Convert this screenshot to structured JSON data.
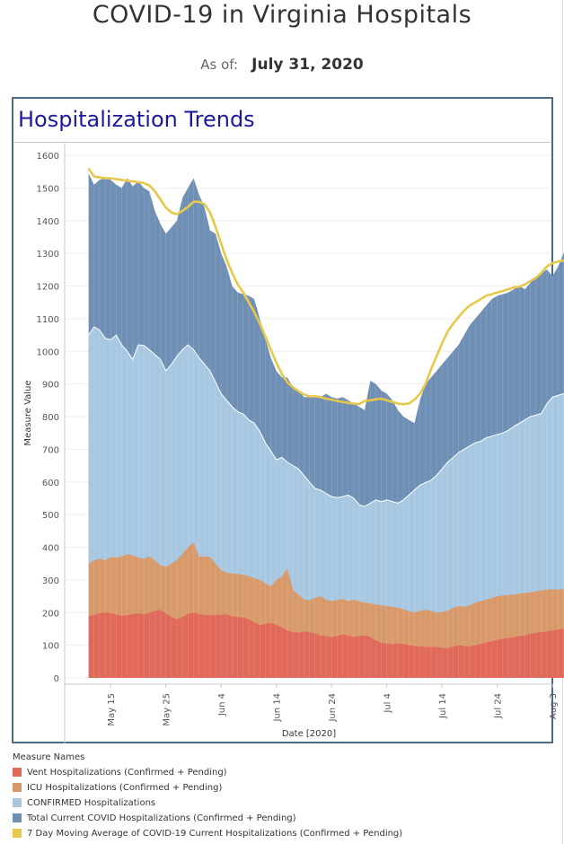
{
  "header": {
    "title": "COVID-19 in Virginia Hospitals",
    "as_of_label": "As of:",
    "as_of_value": "July 31, 2020"
  },
  "chart_data": {
    "type": "area",
    "title": "Hospitalization Trends",
    "ylabel": "Measure Value",
    "xlabel": "Date [2020]",
    "ylim": [
      0,
      1600
    ],
    "yticks": [
      0,
      100,
      200,
      300,
      400,
      500,
      600,
      700,
      800,
      900,
      1000,
      1100,
      1200,
      1300,
      1400,
      1500,
      1600
    ],
    "xticks": [
      "May 15",
      "May 25",
      "Jun 4",
      "Jun 14",
      "Jun 24",
      "Jul 4",
      "Jul 14",
      "Jul 24",
      "Aug 3"
    ],
    "x_start": "May 11",
    "x_end": "Jul 31",
    "legend_title": "Measure Names",
    "series": [
      {
        "name": "Vent Hospitalizations (Confirmed + Pending)",
        "color": "#e0695a",
        "values": [
          188,
          193,
          198,
          200,
          198,
          194,
          190,
          192,
          196,
          198,
          194,
          200,
          205,
          208,
          198,
          186,
          180,
          186,
          196,
          200,
          195,
          193,
          192,
          192,
          193,
          195,
          188,
          186,
          185,
          180,
          170,
          162,
          165,
          168,
          162,
          155,
          145,
          140,
          138,
          142,
          140,
          136,
          130,
          128,
          125,
          128,
          133,
          130,
          125,
          128,
          130,
          125,
          115,
          108,
          105,
          103,
          106,
          104,
          100,
          98,
          96,
          95,
          94,
          95,
          92,
          90,
          96,
          100,
          98,
          95,
          100,
          104,
          108,
          112,
          116,
          120,
          122,
          124,
          128,
          130,
          135,
          138,
          140,
          142,
          145,
          148,
          150,
          152,
          148,
          145
        ]
      },
      {
        "name": "ICU Hospitalizations (Confirmed + Pending)",
        "color": "#d89a6a",
        "values": [
          350,
          360,
          365,
          360,
          370,
          368,
          372,
          378,
          375,
          368,
          365,
          372,
          360,
          345,
          340,
          350,
          360,
          380,
          400,
          415,
          370,
          372,
          370,
          350,
          330,
          322,
          320,
          318,
          315,
          312,
          305,
          300,
          290,
          280,
          300,
          310,
          335,
          270,
          255,
          240,
          238,
          245,
          250,
          240,
          236,
          238,
          242,
          235,
          240,
          235,
          230,
          228,
          225,
          222,
          220,
          218,
          215,
          210,
          205,
          200,
          206,
          208,
          205,
          200,
          202,
          205,
          215,
          220,
          218,
          222,
          230,
          235,
          240,
          245,
          250,
          252,
          254,
          255,
          258,
          260,
          262,
          265,
          268,
          270,
          272,
          270,
          272,
          274,
          276,
          280
        ]
      },
      {
        "name": "CONFIRMED Hospitalizations",
        "color": "#a8c8e1",
        "values": [
          1050,
          1075,
          1065,
          1040,
          1035,
          1050,
          1020,
          1000,
          975,
          1020,
          1018,
          1005,
          990,
          975,
          940,
          960,
          985,
          1005,
          1020,
          1005,
          980,
          960,
          940,
          905,
          870,
          850,
          830,
          815,
          808,
          790,
          780,
          755,
          720,
          695,
          668,
          675,
          660,
          650,
          640,
          620,
          600,
          580,
          575,
          565,
          555,
          552,
          555,
          560,
          550,
          530,
          525,
          535,
          545,
          540,
          545,
          540,
          535,
          545,
          560,
          575,
          590,
          598,
          605,
          620,
          640,
          660,
          675,
          690,
          700,
          710,
          720,
          725,
          735,
          740,
          745,
          750,
          758,
          770,
          780,
          790,
          800,
          805,
          810,
          840,
          860,
          865,
          870,
          875,
          880,
          890
        ]
      },
      {
        "name": "Total Current COVID Hospitalizations (Confirmed + Pending)",
        "color": "#6f8fb5",
        "values": [
          1545,
          1510,
          1525,
          1530,
          1525,
          1510,
          1500,
          1530,
          1505,
          1520,
          1500,
          1490,
          1430,
          1390,
          1360,
          1380,
          1400,
          1470,
          1500,
          1530,
          1480,
          1440,
          1370,
          1360,
          1300,
          1260,
          1200,
          1180,
          1175,
          1170,
          1160,
          1100,
          1040,
          980,
          940,
          920,
          920,
          890,
          880,
          860,
          860,
          865,
          860,
          870,
          860,
          855,
          860,
          850,
          840,
          830,
          820,
          910,
          900,
          880,
          870,
          850,
          820,
          800,
          790,
          780,
          850,
          900,
          920,
          940,
          960,
          980,
          1000,
          1020,
          1050,
          1080,
          1100,
          1120,
          1140,
          1160,
          1170,
          1175,
          1180,
          1190,
          1200,
          1190,
          1210,
          1230,
          1240,
          1250,
          1230,
          1260,
          1300,
          1340,
          1360,
          1330
        ]
      },
      {
        "name": "7 Day Moving Average of COVID-19 Current Hospitalizations (Confirmed + Pending)",
        "color": "#e6c84a",
        "values": [
          1560,
          1535,
          1532,
          1530,
          1530,
          1527,
          1525,
          1522,
          1520,
          1518,
          1515,
          1508,
          1490,
          1465,
          1440,
          1425,
          1420,
          1430,
          1442,
          1458,
          1458,
          1450,
          1425,
          1380,
          1330,
          1280,
          1240,
          1205,
          1180,
          1150,
          1120,
          1085,
          1045,
          1005,
          965,
          930,
          905,
          890,
          878,
          868,
          862,
          862,
          860,
          855,
          852,
          848,
          845,
          842,
          840,
          838,
          848,
          850,
          853,
          855,
          850,
          845,
          840,
          838,
          840,
          852,
          870,
          900,
          945,
          985,
          1025,
          1060,
          1085,
          1105,
          1125,
          1140,
          1150,
          1160,
          1170,
          1175,
          1180,
          1185,
          1190,
          1195,
          1198,
          1205,
          1215,
          1225,
          1240,
          1260,
          1270,
          1275,
          1278,
          1280,
          1280,
          1280
        ]
      }
    ],
    "grid": true,
    "legend_position": "bottom-left"
  }
}
